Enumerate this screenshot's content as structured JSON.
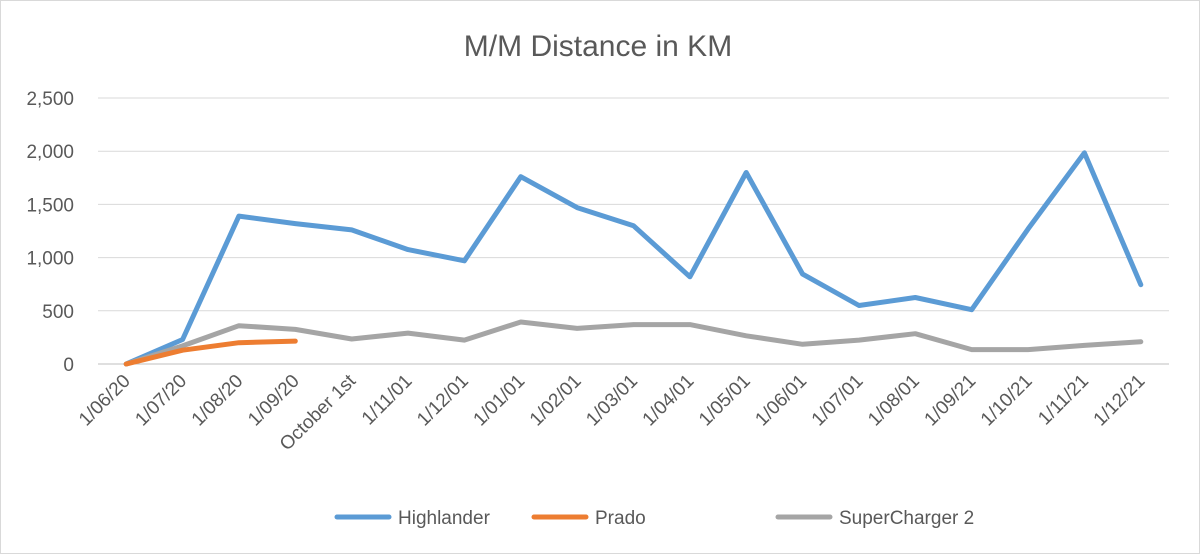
{
  "chart_data": {
    "type": "line",
    "title": "M/M Distance in KM",
    "xlabel": "",
    "ylabel": "",
    "ylim": [
      0,
      2500
    ],
    "yticks": [
      {
        "value": 0,
        "label": "0"
      },
      {
        "value": 500,
        "label": "500"
      },
      {
        "value": 1000,
        "label": "1,000"
      },
      {
        "value": 1500,
        "label": "1,500"
      },
      {
        "value": 2000,
        "label": "2,000"
      },
      {
        "value": 2500,
        "label": "2,500"
      }
    ],
    "categories": [
      "1/06/20",
      "1/07/20",
      "1/08/20",
      "1/09/20",
      "October 1st",
      "1/11/01",
      "1/12/01",
      "1/01/01",
      "1/02/01",
      "1/03/01",
      "1/04/01",
      "1/05/01",
      "1/06/01",
      "1/07/01",
      "1/08/01",
      "1/09/21",
      "1/10/21",
      "1/11/21",
      "1/12/21"
    ],
    "grid": true,
    "legend_position": "bottom",
    "series": [
      {
        "name": "Highlander",
        "color": "#5b9bd5",
        "values": [
          0,
          230,
          1390,
          1320,
          1260,
          1075,
          970,
          1760,
          1470,
          1300,
          820,
          1800,
          845,
          550,
          625,
          510,
          1270,
          1985,
          745
        ]
      },
      {
        "name": "Prado",
        "color": "#ed7d31",
        "values": [
          0,
          130,
          200,
          215,
          null,
          null,
          null,
          null,
          null,
          null,
          null,
          null,
          null,
          null,
          null,
          null,
          null,
          null,
          null
        ]
      },
      {
        "name": "SuperCharger 2",
        "color": "#a5a5a5",
        "values": [
          0,
          170,
          360,
          325,
          235,
          290,
          225,
          395,
          335,
          370,
          370,
          265,
          185,
          225,
          285,
          135,
          135,
          175,
          210
        ]
      }
    ]
  }
}
